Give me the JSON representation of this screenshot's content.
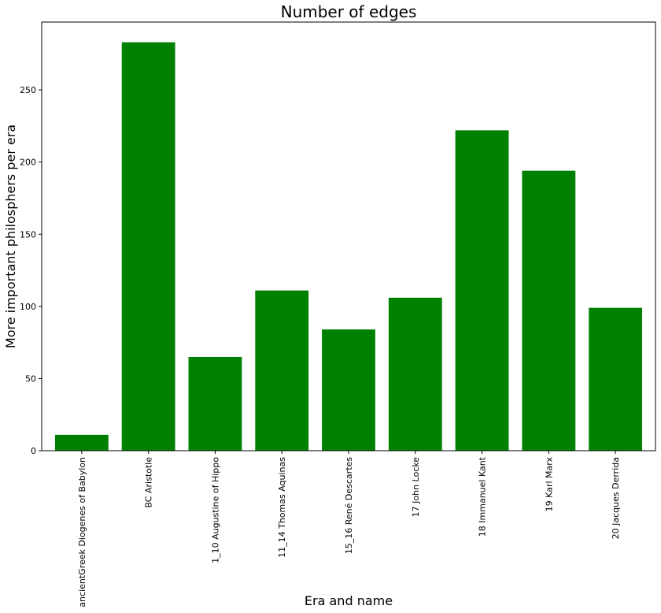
{
  "chart_data": {
    "type": "bar",
    "title": "Number of edges",
    "xlabel": "Era and name",
    "ylabel": "More important philosphers per era",
    "categories": [
      "ancientGreek Diogenes of Babylon",
      "BC Aristotle",
      "1_10 Augustine of Hippo",
      "11_14 Thomas Aquinas",
      "15_16 René Descartes",
      "17 John Locke",
      "18 Immanuel Kant",
      "19 Karl Marx",
      "20 Jacques Derrida"
    ],
    "values": [
      11,
      283,
      65,
      111,
      84,
      106,
      222,
      194,
      99
    ],
    "ylim": [
      0,
      297
    ],
    "yticks": [
      0,
      50,
      100,
      150,
      200,
      250
    ],
    "bar_color": "#008000",
    "grid": false,
    "legend": "none"
  }
}
